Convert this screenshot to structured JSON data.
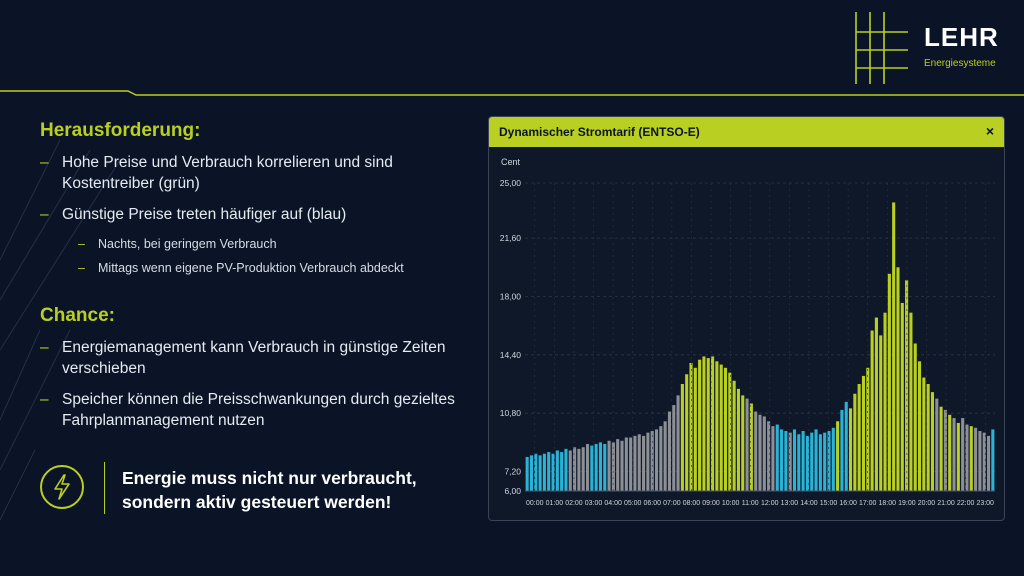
{
  "brand": {
    "name": "LEHR",
    "tagline": "Energiesysteme",
    "accent": "#b9cf21"
  },
  "challenge": {
    "title": "Herausforderung:",
    "bullets": [
      "Hohe Preise und Verbrauch korrelieren und sind Kostentreiber (grün)",
      "Günstige Preise treten häufiger auf (blau)"
    ],
    "sub_bullets": [
      "Nachts, bei geringem Verbrauch",
      "Mittags wenn eigene PV-Produktion Verbrauch abdeckt"
    ]
  },
  "chance": {
    "title": "Chance:",
    "bullets": [
      "Energiemanagement kann Verbrauch in günstige Zeiten verschieben",
      "Speicher können die Preisschwankungen durch gezieltes Fahrplanmanagement nutzen"
    ]
  },
  "callout": {
    "icon": "lightning-icon",
    "line1": "Energie muss nicht nur verbraucht,",
    "line2": "sondern aktiv gesteuert werden!"
  },
  "panel": {
    "title": "Dynamischer Stromtarif (ENTSO-E)",
    "close_label": "×"
  },
  "chart_data": {
    "type": "bar",
    "ylabel": "Cent",
    "ylim": [
      6,
      25
    ],
    "yticks": [
      "25,00",
      "21,60",
      "18,00",
      "14,40",
      "10,80",
      "7,20",
      "6,00"
    ],
    "ytick_values": [
      25,
      21.6,
      18,
      14.4,
      10.8,
      7.2,
      6
    ],
    "xticks": [
      "00:00",
      "01:00",
      "02:00",
      "03:00",
      "04:00",
      "05:00",
      "06:00",
      "07:00",
      "08:00",
      "09:00",
      "10:00",
      "11:00",
      "12:00",
      "13:00",
      "14:00",
      "15:00",
      "16:00",
      "17:00",
      "18:00",
      "19:00",
      "20:00",
      "21:00",
      "22:00",
      "23:00"
    ],
    "colors": {
      "cheap": "#2ab3d6",
      "normal": "#8c8f96",
      "expensive": "#b9cf21"
    },
    "values": [
      8.1,
      8.2,
      8.3,
      8.2,
      8.3,
      8.4,
      8.3,
      8.5,
      8.4,
      8.6,
      8.5,
      8.7,
      8.6,
      8.7,
      8.9,
      8.8,
      8.9,
      9.0,
      8.9,
      9.1,
      9.0,
      9.2,
      9.1,
      9.3,
      9.3,
      9.4,
      9.5,
      9.4,
      9.6,
      9.7,
      9.8,
      10.0,
      10.3,
      10.9,
      11.3,
      11.9,
      12.6,
      13.2,
      13.9,
      13.6,
      14.1,
      14.3,
      14.2,
      14.3,
      14.0,
      13.8,
      13.6,
      13.3,
      12.8,
      12.3,
      11.9,
      11.7,
      11.4,
      10.9,
      10.7,
      10.6,
      10.3,
      10.0,
      10.1,
      9.8,
      9.7,
      9.6,
      9.8,
      9.5,
      9.7,
      9.4,
      9.6,
      9.8,
      9.5,
      9.6,
      9.7,
      9.9,
      10.3,
      11.0,
      11.5,
      11.1,
      12.0,
      12.6,
      13.1,
      13.6,
      15.9,
      16.7,
      15.6,
      17.0,
      19.4,
      23.8,
      19.8,
      17.6,
      19.0,
      17.0,
      15.1,
      14.0,
      13.0,
      12.6,
      12.1,
      11.7,
      11.2,
      11.0,
      10.7,
      10.5,
      10.2,
      10.5,
      10.1,
      10.0,
      9.9,
      9.7,
      9.6,
      9.4,
      9.8
    ],
    "categories": [
      "cheap",
      "cheap",
      "cheap",
      "cheap",
      "cheap",
      "cheap",
      "cheap",
      "cheap",
      "cheap",
      "cheap",
      "normal",
      "normal",
      "normal",
      "normal",
      "normal",
      "cheap",
      "cheap",
      "cheap",
      "cheap",
      "normal",
      "normal",
      "normal",
      "normal",
      "normal",
      "normal",
      "normal",
      "normal",
      "normal",
      "normal",
      "normal",
      "normal",
      "normal",
      "normal",
      "normal",
      "normal",
      "normal",
      "expensive",
      "expensive",
      "expensive",
      "expensive",
      "expensive",
      "expensive",
      "expensive",
      "expensive",
      "expensive",
      "expensive",
      "expensive",
      "expensive",
      "expensive",
      "expensive",
      "expensive",
      "normal",
      "expensive",
      "normal",
      "normal",
      "normal",
      "normal",
      "normal",
      "cheap",
      "cheap",
      "cheap",
      "normal",
      "cheap",
      "cheap",
      "cheap",
      "cheap",
      "cheap",
      "cheap",
      "cheap",
      "cheap",
      "cheap",
      "cheap",
      "expensive",
      "cheap",
      "cheap",
      "expensive",
      "expensive",
      "expensive",
      "expensive",
      "expensive",
      "expensive",
      "expensive",
      "expensive",
      "expensive",
      "expensive",
      "expensive",
      "expensive",
      "expensive",
      "expensive",
      "expensive",
      "expensive",
      "expensive",
      "expensive",
      "expensive",
      "expensive",
      "normal",
      "expensive",
      "normal",
      "expensive",
      "normal",
      "expensive",
      "normal",
      "normal",
      "expensive",
      "normal",
      "normal",
      "normal",
      "normal",
      "cheap"
    ]
  }
}
